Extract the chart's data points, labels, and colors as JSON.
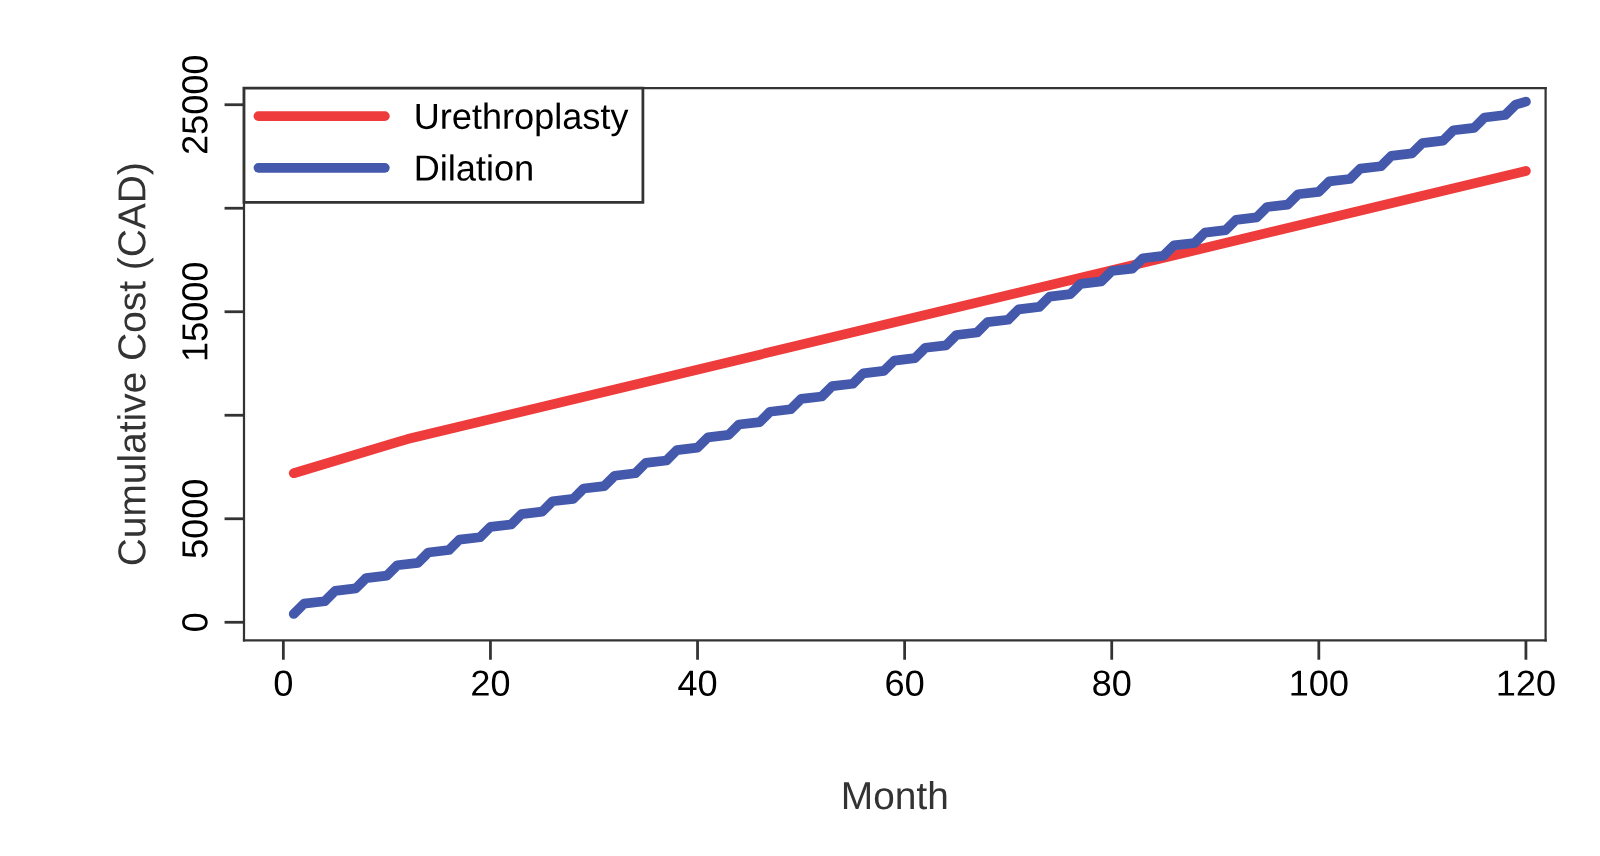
{
  "chart_data": {
    "type": "line",
    "xlabel": "Month",
    "ylabel": "Cumulative Cost (CAD)",
    "xlim": [
      -3.8,
      121.9
    ],
    "ylim": [
      -870,
      25800
    ],
    "xticks": [
      0,
      20,
      40,
      60,
      80,
      100,
      120
    ],
    "yticks": [
      0,
      5000,
      {
        "value": 10000,
        "label": null
      },
      15000,
      {
        "value": 20000,
        "label": null
      },
      25000
    ],
    "legend": "top left",
    "grid": false,
    "line_style": "solid",
    "marker": "none",
    "series": [
      {
        "name": "Urethroplasty",
        "color": "#ee3b3b",
        "x": [
          1,
          11,
          12,
          120
        ],
        "values": [
          7200,
          8700,
          8850,
          21800
        ]
      },
      {
        "name": "Dilation",
        "color": "#4458ac",
        "x": [
          1,
          2,
          4,
          5,
          7,
          8,
          10,
          11,
          13,
          14,
          16,
          17,
          19,
          20,
          22,
          23,
          25,
          26,
          28,
          29,
          31,
          32,
          34,
          35,
          37,
          38,
          40,
          41,
          43,
          44,
          46,
          47,
          49,
          50,
          52,
          53,
          55,
          56,
          58,
          59,
          61,
          62,
          64,
          65,
          67,
          68,
          70,
          71,
          73,
          74,
          76,
          77,
          79,
          80,
          82,
          83,
          85,
          86,
          88,
          89,
          91,
          92,
          94,
          95,
          97,
          98,
          100,
          101,
          103,
          104,
          106,
          107,
          109,
          110,
          112,
          113,
          115,
          116,
          118,
          119,
          120
        ],
        "values": [
          400,
          900,
          1018,
          1518,
          1636,
          2136,
          2254,
          2754,
          2872,
          3372,
          3490,
          3990,
          4108,
          4608,
          4726,
          5226,
          5344,
          5844,
          5962,
          6462,
          6580,
          7080,
          7198,
          7698,
          7816,
          8316,
          8434,
          8934,
          9052,
          9552,
          9670,
          10170,
          10288,
          10788,
          10906,
          11406,
          11524,
          12024,
          12142,
          12642,
          12760,
          13260,
          13378,
          13878,
          13996,
          14496,
          14614,
          15114,
          15232,
          15732,
          15850,
          16350,
          16468,
          16968,
          17086,
          17586,
          17704,
          18204,
          18322,
          18822,
          18940,
          19440,
          19558,
          20058,
          20176,
          20676,
          20794,
          21294,
          21412,
          21912,
          22030,
          22530,
          22648,
          23148,
          23266,
          23766,
          23884,
          24384,
          24502,
          25002,
          25150
        ]
      }
    ]
  }
}
